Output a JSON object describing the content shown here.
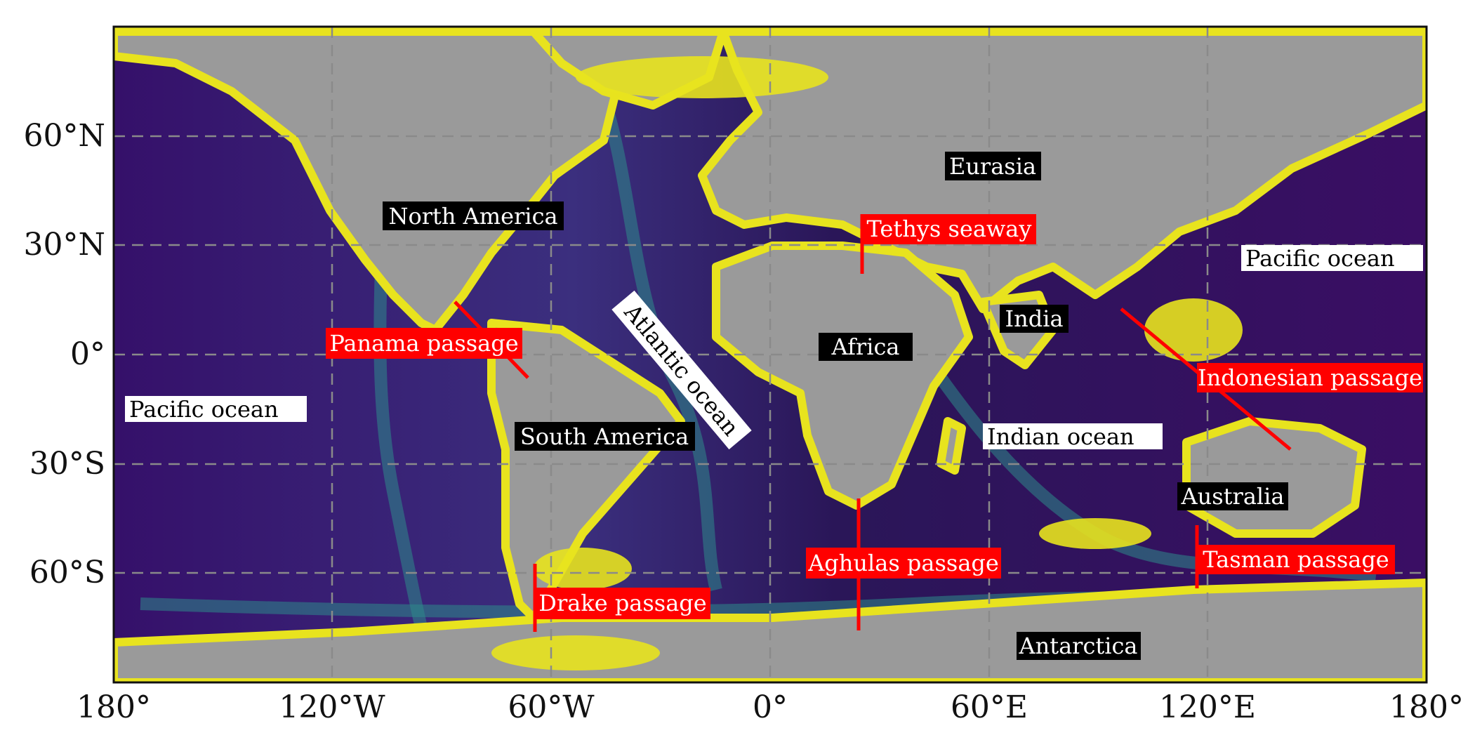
{
  "map": {
    "lat_ticks": [
      "60°N",
      "30°N",
      "0°",
      "30°S",
      "60°S"
    ],
    "lon_ticks": [
      "180°",
      "120°W",
      "60°W",
      "0°",
      "60°E",
      "120°E",
      "180°"
    ],
    "colors": {
      "land": "#9a9a9a",
      "deep_ocean": "#3b0f5e",
      "mid_ocean": "#2a8a8c",
      "shallow_shelf": "#e8e31e",
      "grid": "#8a8a8a",
      "passage_line": "#ff0000"
    },
    "labels": {
      "continents": [
        {
          "key": "north-america",
          "text": "North America"
        },
        {
          "key": "south-america",
          "text": "South America"
        },
        {
          "key": "eurasia",
          "text": "Eurasia"
        },
        {
          "key": "africa",
          "text": "Africa"
        },
        {
          "key": "india",
          "text": "India"
        },
        {
          "key": "australia",
          "text": "Australia"
        },
        {
          "key": "antarctica",
          "text": "Antarctica"
        }
      ],
      "oceans": [
        {
          "key": "pacific-ocean-west",
          "text": "Pacific ocean"
        },
        {
          "key": "pacific-ocean-east",
          "text": "Pacific ocean"
        },
        {
          "key": "atlantic-ocean",
          "text": "Atlantic ocean"
        },
        {
          "key": "indian-ocean",
          "text": "Indian ocean"
        }
      ],
      "passages": [
        {
          "key": "panama-passage",
          "text": "Panama passage"
        },
        {
          "key": "tethys-seaway",
          "text": "Tethys seaway"
        },
        {
          "key": "drake-passage",
          "text": "Drake passage"
        },
        {
          "key": "aghulas-passage",
          "text": "Aghulas passage"
        },
        {
          "key": "indonesian-passage",
          "text": "Indonesian passage"
        },
        {
          "key": "tasman-passage",
          "text": "Tasman passage"
        }
      ]
    }
  }
}
